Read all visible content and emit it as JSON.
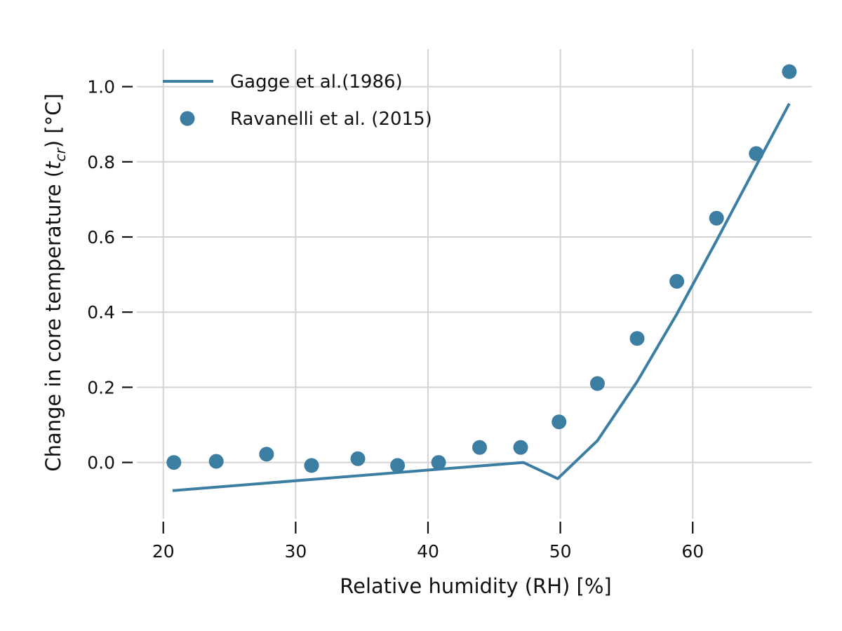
{
  "chart_data": {
    "type": "line",
    "xlabel": "Relative humidity (RH) [%]",
    "ylabel_prefix": "Change in core temperature (",
    "ylabel_var": "t",
    "ylabel_sub": "cr",
    "ylabel_suffix": ") [°C]",
    "xlim": [
      18,
      69
    ],
    "ylim": [
      -0.15,
      1.1
    ],
    "x_ticks": [
      20,
      30,
      40,
      50,
      60
    ],
    "x_tick_labels": [
      "20",
      "30",
      "40",
      "50",
      "60"
    ],
    "y_ticks": [
      0.0,
      0.2,
      0.4,
      0.6,
      0.8,
      1.0
    ],
    "y_tick_labels": [
      "0.0",
      "0.2",
      "0.4",
      "0.6",
      "0.8",
      "1.0"
    ],
    "grid": true,
    "legend_position": "top-left",
    "color": "#3b7ea1",
    "series": [
      {
        "name": "Gagge et al.(1986)",
        "kind": "line",
        "x": [
          20.7,
          47.2,
          49.8,
          52.8,
          55.8,
          58.8,
          61.8,
          64.8,
          67.3
        ],
        "y": [
          -0.075,
          0.0,
          -0.043,
          0.058,
          0.215,
          0.395,
          0.59,
          0.79,
          0.955
        ]
      },
      {
        "name": "Ravanelli et al. (2015)",
        "kind": "scatter",
        "x": [
          20.8,
          24.0,
          27.8,
          31.2,
          34.7,
          37.7,
          40.8,
          43.9,
          47.0,
          49.9,
          52.8,
          55.8,
          58.8,
          61.8,
          64.8,
          67.3
        ],
        "y": [
          0.0,
          0.003,
          0.022,
          -0.008,
          0.01,
          -0.008,
          0.0,
          0.04,
          0.04,
          0.108,
          0.21,
          0.33,
          0.482,
          0.65,
          0.822,
          1.04
        ]
      }
    ]
  }
}
